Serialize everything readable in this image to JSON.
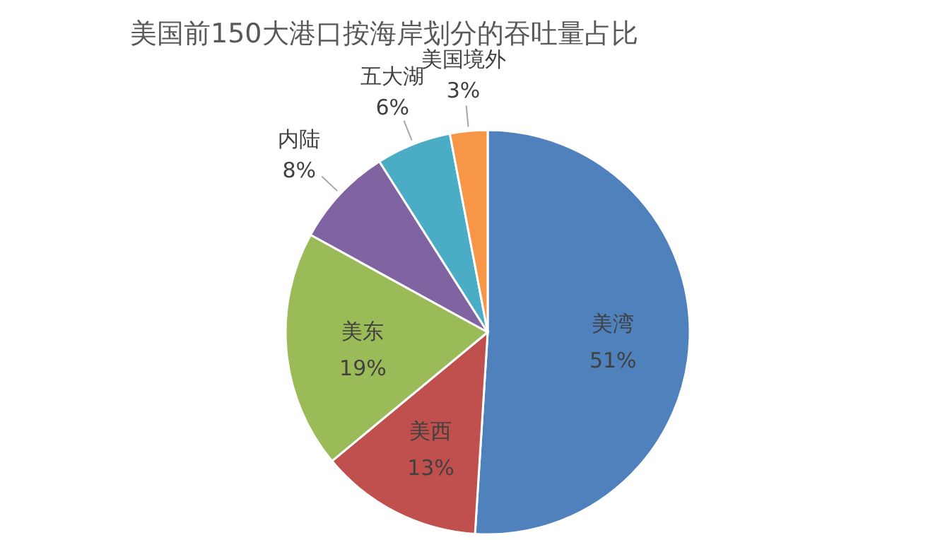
{
  "chart_data": {
    "type": "pie",
    "title": "美国前150大港口按海岸划分的吞吐量占比",
    "categories": [
      "美湾",
      "美西",
      "美东",
      "内陆",
      "五大湖",
      "美国境外"
    ],
    "values": [
      51,
      13,
      19,
      8,
      6,
      3
    ],
    "value_labels": [
      "51%",
      "13%",
      "19%",
      "8%",
      "6%",
      "3%"
    ],
    "colors": [
      "#4f81bd",
      "#c0504d",
      "#9bbb59",
      "#8064a2",
      "#4bacc6",
      "#f79646"
    ]
  }
}
